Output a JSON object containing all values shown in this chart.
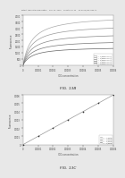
{
  "top_chart": {
    "title": "FIG. 13B",
    "xlabel": "ICG concentration",
    "ylabel": "Fluorescence",
    "xlim": [
      0,
      0.0006
    ],
    "ylim": [
      0,
      4000
    ],
    "yticks": [
      0,
      500,
      1000,
      1500,
      2000,
      2500,
      3000,
      3500,
      4000
    ],
    "xticks": [
      0,
      0.0001,
      0.0002,
      0.0003,
      0.0004,
      0.0005,
      0.0006
    ],
    "curves": [
      {
        "label": "A = 1 (experiment)",
        "color": "#aaaaaa",
        "scale": 1.0
      },
      {
        "label": "A = 2 (experiment)",
        "color": "#999999",
        "scale": 0.82
      },
      {
        "label": "A = 3 (experiment)",
        "color": "#888888",
        "scale": 0.65
      },
      {
        "label": "A = 4 (experiment)",
        "color": "#777777",
        "scale": 0.5
      },
      {
        "label": "A = 5 (experiment)",
        "color": "#666666",
        "scale": 0.37
      }
    ],
    "km": 6e-05,
    "Fmax": 4000
  },
  "bottom_chart": {
    "title": "FIG. 13C",
    "xlabel": "ICG concentration",
    "ylabel": "Fluorescence",
    "xlim": [
      0,
      0.0006
    ],
    "ylim": [
      0,
      0.006
    ],
    "yticks": [
      0,
      0.001,
      0.002,
      0.003,
      0.004,
      0.005,
      0.006
    ],
    "xticks": [
      0,
      0.0001,
      0.0002,
      0.0003,
      0.0004,
      0.0005,
      0.0006
    ],
    "line_color": "#999999",
    "marker_color": "#333333",
    "slope": 10.0,
    "legend_entries": [
      {
        "label": "A = 1 (data)",
        "color": "#aaaaaa"
      },
      {
        "label": "A = 2 (data)",
        "color": "#999999"
      },
      {
        "label": "A = 3 (data)",
        "color": "#888888"
      },
      {
        "label": "A = 4 (data)",
        "color": "#777777"
      }
    ]
  },
  "header_text": "Patent Application Publication    Nov. 21, 2006    Sheet 13 of 22    US 2006/0264738 A1",
  "bg_color": "#e8e8e8",
  "panel_bg": "#ffffff",
  "border_color": "#cccccc"
}
